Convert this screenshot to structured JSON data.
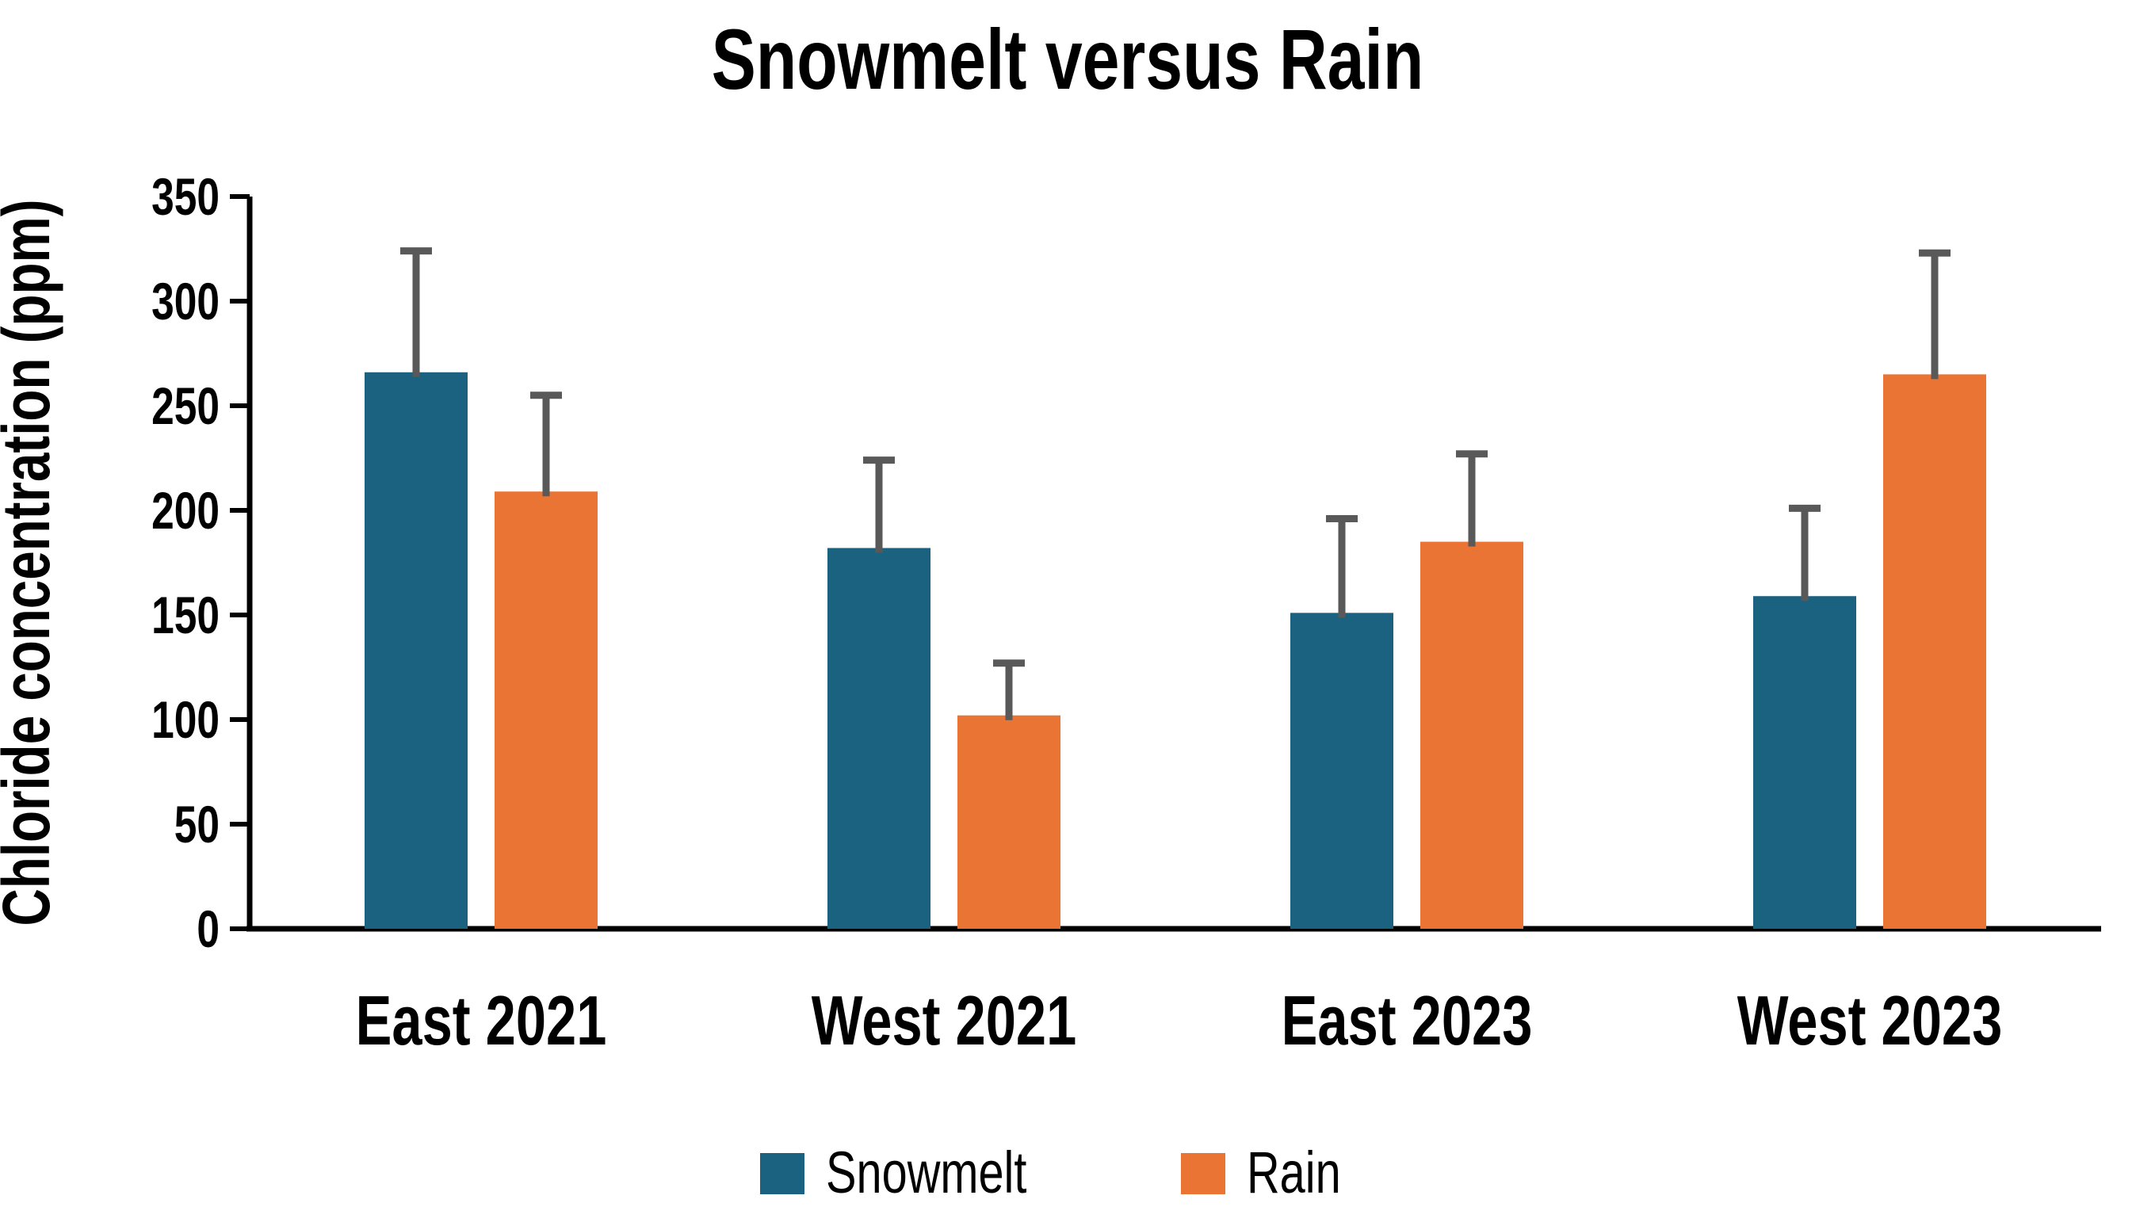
{
  "title": "Snowmelt versus Rain",
  "chart_data": {
    "type": "bar",
    "categories": [
      "East 2021",
      "West 2021",
      "East 2023",
      "West 2023"
    ],
    "series": [
      {
        "name": "Snowmelt",
        "color": "#1B6180",
        "values": [
          266,
          182,
          151,
          159
        ],
        "errors_plus": [
          58,
          42,
          45,
          42
        ]
      },
      {
        "name": "Rain",
        "color": "#EA7434",
        "values": [
          209,
          102,
          185,
          265
        ],
        "errors_plus": [
          46,
          25,
          42,
          58
        ]
      }
    ],
    "title": "Snowmelt versus Rain",
    "xlabel": "",
    "ylabel": "Chloride concentration (ppm)",
    "ylim": [
      0,
      350
    ],
    "yticks": [
      0,
      50,
      100,
      150,
      200,
      250,
      300,
      350
    ],
    "grid": false,
    "legend_position": "bottom",
    "error_bar_color": "#595959",
    "axis_color": "#000000",
    "background_color": "#FFFFFF"
  },
  "legend": {
    "items": [
      {
        "label": "Snowmelt",
        "color": "#1B6180"
      },
      {
        "label": "Rain",
        "color": "#EA7434"
      }
    ]
  }
}
